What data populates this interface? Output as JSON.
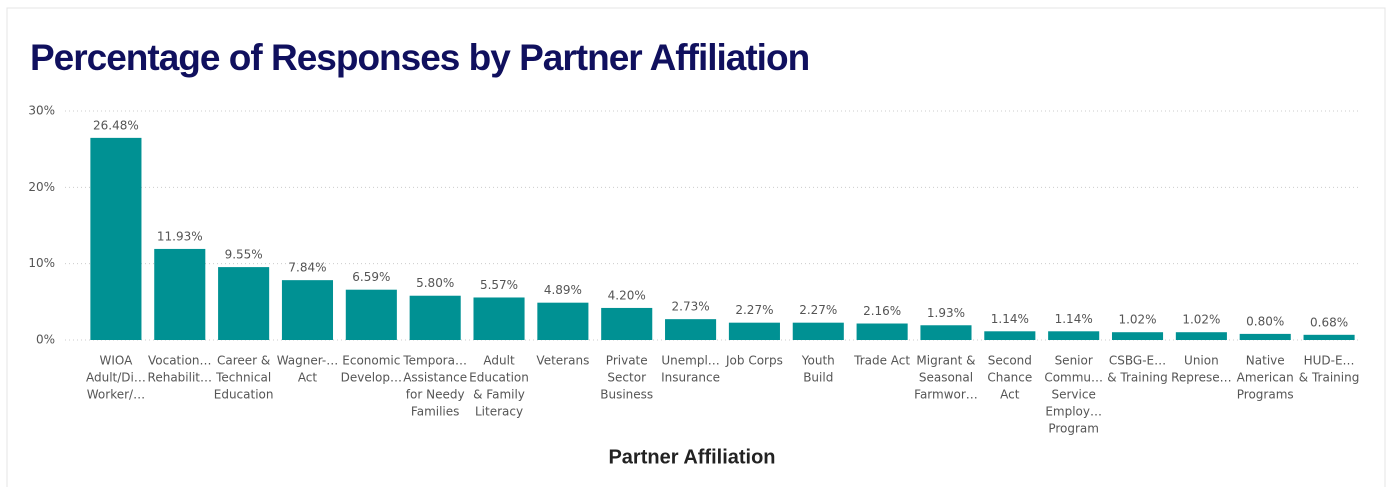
{
  "chart_data": {
    "type": "bar",
    "title": "Percentage of Responses by Partner Affiliation",
    "x_label": "Partner Affiliation",
    "categories": [
      [
        "WIOA",
        "Adult/Di…",
        "Worker/…"
      ],
      [
        "Vocation…",
        "Rehabilit…"
      ],
      [
        "Career &",
        "Technical",
        "Education"
      ],
      [
        "Wagner-…",
        "Act"
      ],
      [
        "Economic",
        "Develop…"
      ],
      [
        "Tempora…",
        "Assistance",
        "for Needy",
        "Families"
      ],
      [
        "Adult",
        "Education",
        "& Family",
        "Literacy"
      ],
      [
        "Veterans"
      ],
      [
        "Private",
        "Sector",
        "Business"
      ],
      [
        "Unempl…",
        "Insurance"
      ],
      [
        "Job Corps"
      ],
      [
        "Youth",
        "Build"
      ],
      [
        "Trade Act"
      ],
      [
        "Migrant &",
        "Seasonal",
        "Farmwor…"
      ],
      [
        "Second",
        "Chance",
        "Act"
      ],
      [
        "Senior",
        "Commu…",
        "Service",
        "Employ…",
        "Program"
      ],
      [
        "CSBG-E…",
        "& Training"
      ],
      [
        "Union",
        "Represe…"
      ],
      [
        "Native",
        "American",
        "Programs"
      ],
      [
        "HUD-E…",
        "& Training"
      ]
    ],
    "values": [
      26.48,
      11.93,
      9.55,
      7.84,
      6.59,
      5.8,
      5.57,
      4.89,
      4.2,
      2.73,
      2.27,
      2.27,
      2.16,
      1.93,
      1.14,
      1.14,
      1.02,
      1.02,
      0.8,
      0.68
    ],
    "value_labels": [
      "26.48%",
      "11.93%",
      "9.55%",
      "7.84%",
      "6.59%",
      "5.80%",
      "5.57%",
      "4.89%",
      "4.20%",
      "2.73%",
      "2.27%",
      "2.27%",
      "2.16%",
      "1.93%",
      "1.14%",
      "1.14%",
      "1.02%",
      "1.02%",
      "0.80%",
      "0.68%"
    ],
    "color": "#009193",
    "ylim": [
      0,
      30
    ],
    "yticks": [
      {
        "value": 0,
        "label": "0%"
      },
      {
        "value": 10,
        "label": "10%"
      },
      {
        "value": 20,
        "label": "20%"
      },
      {
        "value": 30,
        "label": "30%"
      }
    ],
    "grid": true
  }
}
